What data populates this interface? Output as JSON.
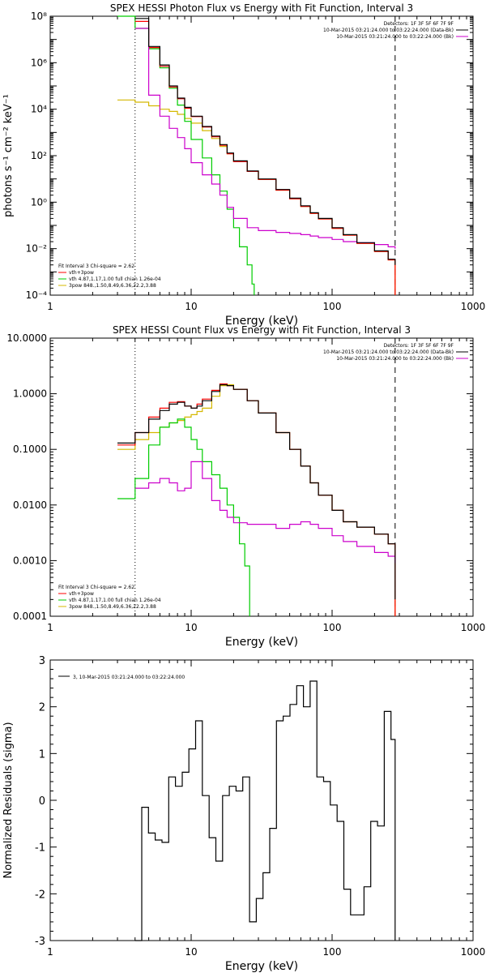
{
  "chart_data": [
    {
      "type": "line",
      "title": "SPEX HESSI Photon Flux vs Energy with Fit Function, Interval 3",
      "xlabel": "Energy (keV)",
      "ylabel": "photons s⁻¹ cm⁻² keV⁻¹",
      "xscale": "log",
      "yscale": "log",
      "xlim": [
        1,
        1000
      ],
      "ylim": [
        0.0001,
        100000000
      ],
      "x_ticks": [
        "1",
        "10",
        "100",
        "1000"
      ],
      "y_ticks": [
        "10⁸",
        "10⁶",
        "10⁴",
        "10²",
        "10⁰",
        "10⁻²",
        "10⁻⁴"
      ],
      "legend_top": [
        "Detectors: 1F 3F 5F 6F 7F 9F",
        "10-Mar-2015 03:21:24.000 to 03:22:24.000 (Data-Bk)",
        "10-Mar-2015 03:21:24.000 to 03:22:24.000 (Bk)"
      ],
      "legend_bottom": [
        "Fit Interval 3   Chi-square = 2.62",
        "vth+3pow",
        "vth 4.87,1.17,1.00  full chian 1.26e-04",
        "3pow 848.,1.50,8.49,6.36,22.2,3.88"
      ],
      "vlines": [
        {
          "x": 4.0,
          "style": "dotted",
          "color": "#000000"
        },
        {
          "x": 280,
          "style": "dashed",
          "color": "#000000"
        }
      ],
      "series": [
        {
          "name": "10-Mar-2015 03:21:24.000 to 03:22:24.000 (Data-Bk)",
          "color": "#000000",
          "x": [
            4,
            5,
            6,
            7,
            8,
            9,
            10,
            12,
            14,
            16,
            18,
            20,
            25,
            30,
            40,
            50,
            60,
            70,
            80,
            100,
            120,
            150,
            200,
            250,
            280
          ],
          "y": [
            80000000,
            5000000,
            800000,
            100000,
            30000,
            12000,
            5000,
            1800,
            700,
            300,
            130,
            60,
            22,
            10,
            3.5,
            1.5,
            0.7,
            0.35,
            0.2,
            0.08,
            0.04,
            0.018,
            0.008,
            0.0035,
            0.002
          ]
        },
        {
          "name": "10-Mar-2015 03:21:24.000 to 03:22:24.000 (Bk)",
          "color": "#cc00cc",
          "x": [
            4,
            5,
            6,
            7,
            8,
            9,
            10,
            12,
            14,
            16,
            18,
            20,
            25,
            30,
            40,
            50,
            60,
            70,
            80,
            100,
            120,
            150,
            200,
            250,
            280
          ],
          "y": [
            30000000,
            40000,
            5000,
            1500,
            600,
            200,
            50,
            15,
            6,
            2,
            0.6,
            0.2,
            0.08,
            0.06,
            0.05,
            0.045,
            0.04,
            0.035,
            0.03,
            0.025,
            0.02,
            0.018,
            0.015,
            0.012,
            0.01
          ]
        },
        {
          "name": "vth+3pow",
          "color": "#ff0000",
          "x": [
            4,
            5,
            6,
            7,
            8,
            9,
            10,
            12,
            14,
            16,
            18,
            20,
            25,
            30,
            40,
            50,
            60,
            70,
            80,
            100,
            120,
            150,
            200,
            250,
            280
          ],
          "y": [
            60000000,
            4500000,
            700000,
            90000,
            28000,
            11000,
            4800,
            1700,
            650,
            280,
            120,
            55,
            21,
            9.5,
            3.3,
            1.4,
            0.65,
            0.33,
            0.19,
            0.075,
            0.038,
            0.017,
            0.0075,
            0.0033,
            0.0001
          ]
        },
        {
          "name": "vth 4.87,1.17,1.00  full chian 1.26e-04",
          "color": "#00cc00",
          "x": [
            3,
            4,
            5,
            6,
            7,
            8,
            9,
            10,
            12,
            14,
            16,
            18,
            20,
            22,
            25,
            27,
            28
          ],
          "y": [
            100000000,
            30000000,
            4000000,
            600000,
            80000,
            15000,
            3000,
            500,
            80,
            15,
            3,
            0.5,
            0.08,
            0.012,
            0.002,
            0.0003,
            0.0001
          ]
        },
        {
          "name": "3pow 848.,1.50,8.49,6.36,22.2,3.88",
          "color": "#d4b800",
          "x": [
            3,
            4,
            5,
            6,
            7,
            8,
            9,
            10,
            12,
            14,
            16,
            18,
            20,
            25,
            30,
            40,
            50,
            60,
            70,
            80,
            100,
            120,
            150,
            200,
            250,
            280
          ],
          "y": [
            25000,
            20000,
            14000,
            10000,
            8000,
            6000,
            4000,
            2500,
            1200,
            550,
            250,
            120,
            55,
            21,
            9.5,
            3.3,
            1.4,
            0.65,
            0.33,
            0.19,
            0.075,
            0.038,
            0.017,
            0.0075,
            0.0033,
            0.0001
          ]
        }
      ]
    },
    {
      "type": "line",
      "title": "SPEX HESSI Count Flux vs Energy with Fit Function, Interval 3",
      "xlabel": "Energy (keV)",
      "ylabel": "",
      "xscale": "log",
      "yscale": "log",
      "xlim": [
        1,
        1000
      ],
      "ylim": [
        0.0001,
        10
      ],
      "x_ticks": [
        "1",
        "10",
        "100",
        "1000"
      ],
      "y_ticks": [
        "10.0000",
        "1.0000",
        "0.1000",
        "0.0100",
        "0.0010",
        "0.0001"
      ],
      "legend_top": [
        "Detectors: 1F 3F 5F 6F 7F 9F",
        "10-Mar-2015 03:21:24.000 to 03:22:24.000 (Data-Bk)",
        "10-Mar-2015 03:21:24.000 to 03:22:24.000 (Bk)"
      ],
      "legend_bottom": [
        "Fit Interval 3   Chi-square = 2.62",
        "vth+3pow",
        "vth 4.87,1.17,1.00  full chian 1.26e-04",
        "3pow 848.,1.50,8.49,6.36,22.2,3.88"
      ],
      "vlines": [
        {
          "x": 4.0,
          "style": "dotted",
          "color": "#000000"
        },
        {
          "x": 280,
          "style": "dashed",
          "color": "#000000"
        }
      ],
      "series": [
        {
          "name": "10-Mar-2015 03:21:24.000 to 03:22:24.000 (Data-Bk)",
          "color": "#000000",
          "x": [
            3,
            4,
            5,
            6,
            7,
            8,
            9,
            10,
            11,
            12,
            14,
            16,
            18,
            20,
            25,
            30,
            40,
            50,
            60,
            70,
            80,
            100,
            120,
            150,
            200,
            250,
            280
          ],
          "y": [
            0.13,
            0.2,
            0.35,
            0.5,
            0.65,
            0.7,
            0.6,
            0.55,
            0.6,
            0.75,
            1.1,
            1.45,
            1.4,
            1.2,
            0.75,
            0.45,
            0.2,
            0.1,
            0.05,
            0.025,
            0.015,
            0.008,
            0.005,
            0.004,
            0.003,
            0.002,
            0.0002
          ]
        },
        {
          "name": "10-Mar-2015 03:21:24.000 to 03:22:24.000 (Bk)",
          "color": "#cc00cc",
          "x": [
            4,
            5,
            6,
            7,
            8,
            9,
            10,
            11,
            12,
            14,
            16,
            18,
            20,
            25,
            30,
            40,
            50,
            60,
            70,
            80,
            100,
            120,
            150,
            200,
            250,
            280
          ],
          "y": [
            0.02,
            0.025,
            0.03,
            0.025,
            0.018,
            0.02,
            0.06,
            0.06,
            0.03,
            0.012,
            0.008,
            0.006,
            0.0048,
            0.0045,
            0.0045,
            0.0038,
            0.0045,
            0.005,
            0.0045,
            0.0038,
            0.0028,
            0.0022,
            0.0018,
            0.0014,
            0.0012,
            0.0009
          ]
        },
        {
          "name": "vth+3pow",
          "color": "#ff0000",
          "x": [
            3,
            4,
            5,
            6,
            7,
            8,
            9,
            10,
            11,
            12,
            14,
            16,
            18,
            20,
            25,
            30,
            40,
            50,
            60,
            70,
            80,
            100,
            120,
            150,
            200,
            250,
            280
          ],
          "y": [
            0.12,
            0.2,
            0.38,
            0.55,
            0.7,
            0.72,
            0.6,
            0.55,
            0.65,
            0.8,
            1.15,
            1.5,
            1.4,
            1.2,
            0.75,
            0.45,
            0.2,
            0.1,
            0.05,
            0.025,
            0.015,
            0.008,
            0.005,
            0.004,
            0.003,
            0.002,
            0.0001
          ]
        },
        {
          "name": "vth 4.87,1.17,1.00  full chian 1.26e-04",
          "color": "#00cc00",
          "x": [
            3,
            4,
            5,
            6,
            7,
            8,
            9,
            10,
            11,
            12,
            14,
            16,
            18,
            20,
            22,
            24,
            26
          ],
          "y": [
            0.013,
            0.03,
            0.12,
            0.25,
            0.3,
            0.35,
            0.25,
            0.15,
            0.1,
            0.06,
            0.035,
            0.02,
            0.01,
            0.006,
            0.002,
            0.0008,
            0.0001
          ]
        },
        {
          "name": "3pow 848.,1.50,8.49,6.36,22.2,3.88",
          "color": "#d4b800",
          "x": [
            3,
            4,
            5,
            6,
            7,
            8,
            9,
            10,
            11,
            12,
            14,
            16,
            18,
            20,
            25,
            30,
            40,
            50,
            60,
            70,
            80,
            100,
            120,
            150,
            200,
            250,
            280
          ],
          "y": [
            0.1,
            0.15,
            0.2,
            0.25,
            0.3,
            0.33,
            0.38,
            0.42,
            0.48,
            0.55,
            0.9,
            1.4,
            1.45,
            1.2,
            0.75,
            0.45,
            0.2,
            0.1,
            0.05,
            0.025,
            0.015,
            0.008,
            0.005,
            0.004,
            0.003,
            0.002,
            0.0001
          ]
        }
      ]
    },
    {
      "type": "line",
      "title": "",
      "xlabel": "Energy (keV)",
      "ylabel": "Normalized Residuals (sigma)",
      "xscale": "log",
      "yscale": "linear",
      "xlim": [
        1,
        1000
      ],
      "ylim": [
        -3,
        3
      ],
      "x_ticks": [
        "1",
        "10",
        "100",
        "1000"
      ],
      "y_ticks": [
        "3",
        "2",
        "1",
        "0",
        "-1",
        "-2",
        "-3"
      ],
      "legend_top": [
        "3, 10-Mar-2015 03:21:24.000 to 03:22:24.000"
      ],
      "series": [
        {
          "name": "3, 10-Mar-2015 03:21:24.000 to 03:22:24.000",
          "color": "#000000",
          "x": [
            4.0,
            4.46,
            4.98,
            5.56,
            6.21,
            6.93,
            7.74,
            8.64,
            9.64,
            10.76,
            12.01,
            13.41,
            14.97,
            16.71,
            18.65,
            20.82,
            23.24,
            25.95,
            28.97,
            32.34,
            36.1,
            40.3,
            44.99,
            50.22,
            56.06,
            62.58,
            69.86,
            77.99,
            87.06,
            97.19,
            108.5,
            121.1,
            135.2,
            150.9,
            168.5,
            188.1,
            210.0,
            234.4,
            261.6,
            280.0
          ],
          "y": [
            -3,
            -0.15,
            -0.7,
            -0.85,
            -0.9,
            0.5,
            0.3,
            0.6,
            1.1,
            1.7,
            0.1,
            -0.8,
            -1.3,
            0.1,
            0.3,
            0.2,
            0.5,
            -2.6,
            -2.1,
            -1.55,
            -0.6,
            1.7,
            1.8,
            2.05,
            2.45,
            2.0,
            2.55,
            0.5,
            0.4,
            -0.1,
            -0.45,
            -1.9,
            -2.45,
            -2.45,
            -1.85,
            -0.45,
            -0.55,
            1.9,
            1.3,
            -3
          ]
        }
      ]
    }
  ]
}
